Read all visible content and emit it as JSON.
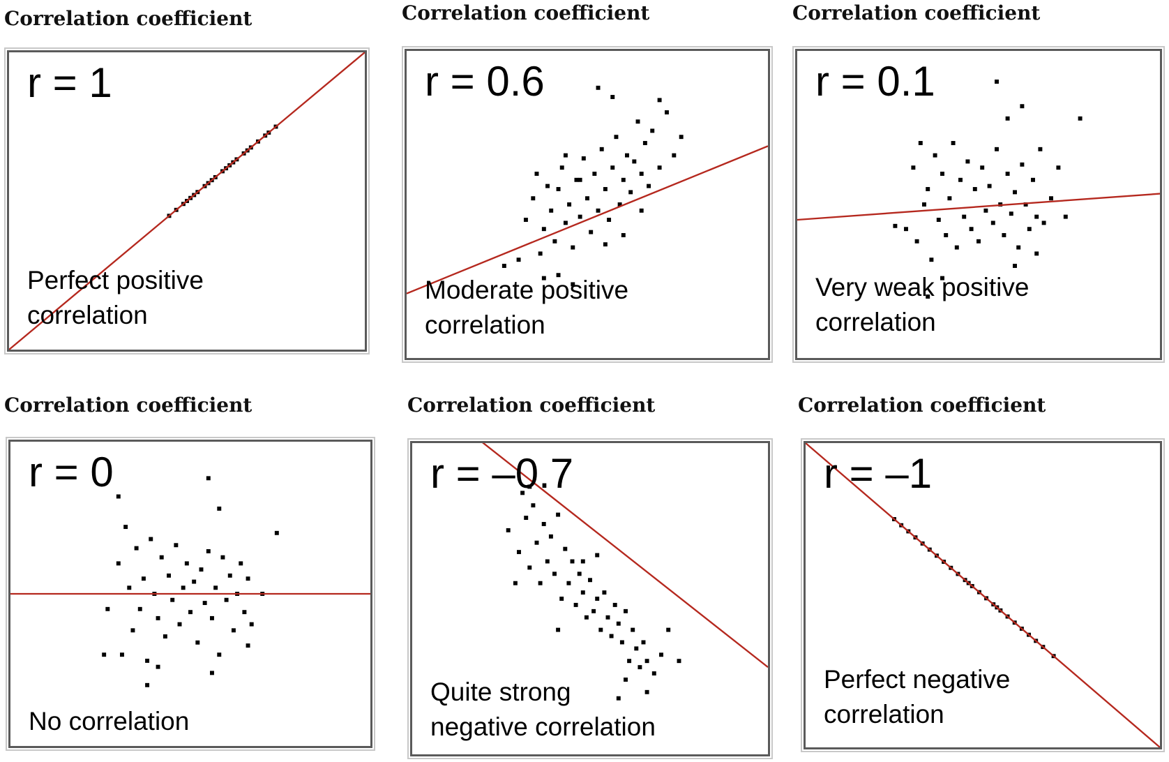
{
  "colors": {
    "line": "#b5281e",
    "point": "#000000",
    "border": "#5a5a5a"
  },
  "chart_data": [
    {
      "type": "scatter",
      "title": "Correlation coefficient",
      "r_label": "r = 1",
      "description": [
        "Perfect positive",
        "correlation"
      ],
      "grid": false,
      "trend_line": {
        "slope": 1.0,
        "intercept": 0.0
      },
      "points": [
        [
          0.45,
          0.45
        ],
        [
          0.47,
          0.47
        ],
        [
          0.49,
          0.49
        ],
        [
          0.5,
          0.5
        ],
        [
          0.52,
          0.52
        ],
        [
          0.53,
          0.53
        ],
        [
          0.55,
          0.55
        ],
        [
          0.56,
          0.56
        ],
        [
          0.58,
          0.58
        ],
        [
          0.6,
          0.6
        ],
        [
          0.61,
          0.61
        ],
        [
          0.63,
          0.63
        ],
        [
          0.64,
          0.64
        ],
        [
          0.66,
          0.66
        ],
        [
          0.68,
          0.68
        ],
        [
          0.7,
          0.7
        ],
        [
          0.72,
          0.72
        ],
        [
          0.73,
          0.73
        ],
        [
          0.75,
          0.75
        ],
        [
          0.62,
          0.62
        ],
        [
          0.57,
          0.57
        ],
        [
          0.67,
          0.67
        ],
        [
          0.51,
          0.51
        ]
      ]
    },
    {
      "type": "scatter",
      "title": "Correlation coefficient",
      "r_label": "r = 0.6",
      "description": [
        "Moderate positive",
        "correlation"
      ],
      "grid": false,
      "trend_line": {
        "slope": 0.48,
        "intercept": 0.21
      },
      "points": [
        [
          0.27,
          0.3
        ],
        [
          0.31,
          0.32
        ],
        [
          0.33,
          0.45
        ],
        [
          0.35,
          0.52
        ],
        [
          0.36,
          0.6
        ],
        [
          0.37,
          0.34
        ],
        [
          0.38,
          0.42
        ],
        [
          0.39,
          0.56
        ],
        [
          0.4,
          0.48
        ],
        [
          0.41,
          0.38
        ],
        [
          0.42,
          0.55
        ],
        [
          0.43,
          0.62
        ],
        [
          0.44,
          0.44
        ],
        [
          0.45,
          0.5
        ],
        [
          0.46,
          0.36
        ],
        [
          0.47,
          0.58
        ],
        [
          0.48,
          0.46
        ],
        [
          0.49,
          0.65
        ],
        [
          0.5,
          0.52
        ],
        [
          0.51,
          0.41
        ],
        [
          0.52,
          0.6
        ],
        [
          0.53,
          0.48
        ],
        [
          0.54,
          0.68
        ],
        [
          0.55,
          0.55
        ],
        [
          0.56,
          0.45
        ],
        [
          0.57,
          0.62
        ],
        [
          0.58,
          0.72
        ],
        [
          0.59,
          0.5
        ],
        [
          0.6,
          0.58
        ],
        [
          0.61,
          0.66
        ],
        [
          0.62,
          0.54
        ],
        [
          0.63,
          0.64
        ],
        [
          0.64,
          0.77
        ],
        [
          0.65,
          0.6
        ],
        [
          0.66,
          0.7
        ],
        [
          0.67,
          0.56
        ],
        [
          0.68,
          0.74
        ],
        [
          0.7,
          0.62
        ],
        [
          0.72,
          0.8
        ],
        [
          0.74,
          0.66
        ],
        [
          0.53,
          0.88
        ],
        [
          0.57,
          0.85
        ],
        [
          0.7,
          0.84
        ],
        [
          0.76,
          0.72
        ],
        [
          0.42,
          0.27
        ],
        [
          0.46,
          0.24
        ],
        [
          0.38,
          0.26
        ],
        [
          0.55,
          0.37
        ],
        [
          0.6,
          0.4
        ],
        [
          0.65,
          0.48
        ],
        [
          0.48,
          0.58
        ],
        [
          0.44,
          0.66
        ]
      ]
    },
    {
      "type": "scatter",
      "title": "Correlation coefficient",
      "r_label": "r = 0.1",
      "description": [
        "Very weak positive",
        "correlation"
      ],
      "grid": false,
      "trend_line": {
        "slope": 0.085,
        "intercept": 0.45
      },
      "points": [
        [
          0.27,
          0.43
        ],
        [
          0.3,
          0.42
        ],
        [
          0.32,
          0.62
        ],
        [
          0.33,
          0.38
        ],
        [
          0.34,
          0.7
        ],
        [
          0.35,
          0.5
        ],
        [
          0.36,
          0.55
        ],
        [
          0.37,
          0.32
        ],
        [
          0.38,
          0.66
        ],
        [
          0.39,
          0.45
        ],
        [
          0.4,
          0.6
        ],
        [
          0.41,
          0.4
        ],
        [
          0.42,
          0.52
        ],
        [
          0.43,
          0.7
        ],
        [
          0.44,
          0.36
        ],
        [
          0.45,
          0.58
        ],
        [
          0.46,
          0.46
        ],
        [
          0.47,
          0.64
        ],
        [
          0.48,
          0.42
        ],
        [
          0.49,
          0.55
        ],
        [
          0.5,
          0.38
        ],
        [
          0.51,
          0.62
        ],
        [
          0.52,
          0.48
        ],
        [
          0.53,
          0.56
        ],
        [
          0.54,
          0.44
        ],
        [
          0.55,
          0.68
        ],
        [
          0.56,
          0.5
        ],
        [
          0.57,
          0.4
        ],
        [
          0.58,
          0.6
        ],
        [
          0.59,
          0.47
        ],
        [
          0.6,
          0.54
        ],
        [
          0.61,
          0.36
        ],
        [
          0.62,
          0.63
        ],
        [
          0.63,
          0.5
        ],
        [
          0.64,
          0.42
        ],
        [
          0.65,
          0.58
        ],
        [
          0.66,
          0.46
        ],
        [
          0.67,
          0.68
        ],
        [
          0.68,
          0.44
        ],
        [
          0.7,
          0.52
        ],
        [
          0.72,
          0.62
        ],
        [
          0.74,
          0.46
        ],
        [
          0.55,
          0.9
        ],
        [
          0.58,
          0.78
        ],
        [
          0.62,
          0.82
        ],
        [
          0.36,
          0.2
        ],
        [
          0.4,
          0.26
        ],
        [
          0.6,
          0.3
        ],
        [
          0.66,
          0.34
        ],
        [
          0.78,
          0.78
        ]
      ]
    },
    {
      "type": "scatter",
      "title": "Correlation coefficient",
      "r_label": "r = 0",
      "description": [
        "No correlation"
      ],
      "grid": false,
      "trend_line": {
        "slope": 0.0,
        "intercept": 0.5
      },
      "points": [
        [
          0.27,
          0.45
        ],
        [
          0.3,
          0.6
        ],
        [
          0.31,
          0.3
        ],
        [
          0.32,
          0.72
        ],
        [
          0.33,
          0.52
        ],
        [
          0.34,
          0.38
        ],
        [
          0.35,
          0.65
        ],
        [
          0.36,
          0.45
        ],
        [
          0.37,
          0.55
        ],
        [
          0.38,
          0.28
        ],
        [
          0.39,
          0.68
        ],
        [
          0.4,
          0.5
        ],
        [
          0.41,
          0.42
        ],
        [
          0.42,
          0.62
        ],
        [
          0.43,
          0.36
        ],
        [
          0.44,
          0.56
        ],
        [
          0.45,
          0.48
        ],
        [
          0.46,
          0.66
        ],
        [
          0.47,
          0.4
        ],
        [
          0.48,
          0.52
        ],
        [
          0.49,
          0.6
        ],
        [
          0.5,
          0.44
        ],
        [
          0.51,
          0.54
        ],
        [
          0.52,
          0.34
        ],
        [
          0.53,
          0.58
        ],
        [
          0.54,
          0.47
        ],
        [
          0.55,
          0.64
        ],
        [
          0.56,
          0.42
        ],
        [
          0.57,
          0.52
        ],
        [
          0.58,
          0.3
        ],
        [
          0.59,
          0.62
        ],
        [
          0.6,
          0.48
        ],
        [
          0.61,
          0.56
        ],
        [
          0.62,
          0.38
        ],
        [
          0.63,
          0.5
        ],
        [
          0.64,
          0.6
        ],
        [
          0.65,
          0.44
        ],
        [
          0.66,
          0.55
        ],
        [
          0.67,
          0.4
        ],
        [
          0.7,
          0.5
        ],
        [
          0.55,
          0.88
        ],
        [
          0.58,
          0.78
        ],
        [
          0.3,
          0.82
        ],
        [
          0.74,
          0.7
        ],
        [
          0.38,
          0.2
        ],
        [
          0.41,
          0.26
        ],
        [
          0.56,
          0.24
        ],
        [
          0.66,
          0.33
        ],
        [
          0.26,
          0.3
        ]
      ]
    },
    {
      "type": "scatter",
      "title": "Correlation coefficient",
      "r_label": "r = –0.7",
      "description": [
        "Quite strong",
        "negative correlation"
      ],
      "grid": false,
      "trend_line": {
        "slope": -0.9,
        "intercept": 1.18
      },
      "points": [
        [
          0.27,
          0.72
        ],
        [
          0.3,
          0.65
        ],
        [
          0.32,
          0.76
        ],
        [
          0.33,
          0.6
        ],
        [
          0.34,
          0.8
        ],
        [
          0.35,
          0.68
        ],
        [
          0.36,
          0.55
        ],
        [
          0.37,
          0.74
        ],
        [
          0.38,
          0.62
        ],
        [
          0.39,
          0.7
        ],
        [
          0.4,
          0.58
        ],
        [
          0.41,
          0.77
        ],
        [
          0.42,
          0.5
        ],
        [
          0.43,
          0.66
        ],
        [
          0.44,
          0.55
        ],
        [
          0.45,
          0.62
        ],
        [
          0.46,
          0.48
        ],
        [
          0.47,
          0.58
        ],
        [
          0.48,
          0.52
        ],
        [
          0.49,
          0.44
        ],
        [
          0.5,
          0.56
        ],
        [
          0.51,
          0.46
        ],
        [
          0.52,
          0.5
        ],
        [
          0.53,
          0.4
        ],
        [
          0.54,
          0.52
        ],
        [
          0.55,
          0.44
        ],
        [
          0.56,
          0.38
        ],
        [
          0.57,
          0.48
        ],
        [
          0.58,
          0.42
        ],
        [
          0.59,
          0.36
        ],
        [
          0.6,
          0.46
        ],
        [
          0.61,
          0.3
        ],
        [
          0.62,
          0.4
        ],
        [
          0.63,
          0.34
        ],
        [
          0.64,
          0.28
        ],
        [
          0.65,
          0.36
        ],
        [
          0.66,
          0.3
        ],
        [
          0.68,
          0.26
        ],
        [
          0.7,
          0.32
        ],
        [
          0.72,
          0.4
        ],
        [
          0.31,
          0.84
        ],
        [
          0.33,
          0.86
        ],
        [
          0.29,
          0.55
        ],
        [
          0.41,
          0.4
        ],
        [
          0.52,
          0.64
        ],
        [
          0.6,
          0.24
        ],
        [
          0.66,
          0.2
        ],
        [
          0.58,
          0.18
        ],
        [
          0.75,
          0.3
        ],
        [
          0.48,
          0.62
        ]
      ]
    },
    {
      "type": "scatter",
      "title": "Correlation coefficient",
      "r_label": "r = –1",
      "description": [
        "Perfect negative",
        "correlation"
      ],
      "grid": false,
      "trend_line": {
        "slope": -1.0,
        "intercept": 1.0
      },
      "points": [
        [
          0.25,
          0.75
        ],
        [
          0.27,
          0.73
        ],
        [
          0.29,
          0.71
        ],
        [
          0.31,
          0.69
        ],
        [
          0.33,
          0.67
        ],
        [
          0.35,
          0.65
        ],
        [
          0.37,
          0.63
        ],
        [
          0.39,
          0.61
        ],
        [
          0.41,
          0.59
        ],
        [
          0.43,
          0.57
        ],
        [
          0.45,
          0.55
        ],
        [
          0.47,
          0.53
        ],
        [
          0.49,
          0.51
        ],
        [
          0.51,
          0.49
        ],
        [
          0.53,
          0.47
        ],
        [
          0.55,
          0.45
        ],
        [
          0.57,
          0.43
        ],
        [
          0.59,
          0.41
        ],
        [
          0.61,
          0.39
        ],
        [
          0.63,
          0.37
        ],
        [
          0.65,
          0.35
        ],
        [
          0.67,
          0.33
        ],
        [
          0.7,
          0.3
        ],
        [
          0.46,
          0.54
        ],
        [
          0.54,
          0.46
        ]
      ]
    }
  ]
}
